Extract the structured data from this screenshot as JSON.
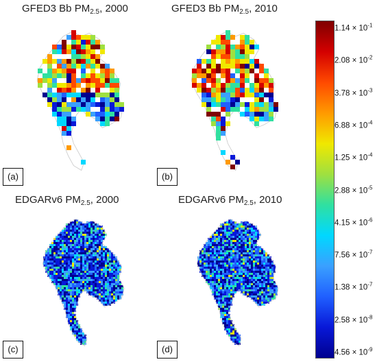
{
  "panels": [
    {
      "id": "a",
      "title_prefix": "GFED3 Bb PM",
      "title_sub": "2.5",
      "title_suffix": ", 2000",
      "tag": "(a)",
      "dataset": "GFED3"
    },
    {
      "id": "b",
      "title_prefix": "GFED3 Bb PM",
      "title_sub": "2.5",
      "title_suffix": ", 2010",
      "tag": "(b)",
      "dataset": "GFED3"
    },
    {
      "id": "c",
      "title_prefix": "EDGARv6 PM",
      "title_sub": "2.5",
      "title_suffix": ", 2000",
      "tag": "(c)",
      "dataset": "EDGARv6"
    },
    {
      "id": "d",
      "title_prefix": "EDGARv6 PM",
      "title_sub": "2.5",
      "title_suffix": ", 2010",
      "tag": "(d)",
      "dataset": "EDGARv6"
    }
  ],
  "colorbar": {
    "labels": [
      {
        "mant": "1.14",
        "exp": "-1"
      },
      {
        "mant": "2.08",
        "exp": "-2"
      },
      {
        "mant": "3.78",
        "exp": "-3"
      },
      {
        "mant": "6.88",
        "exp": "-4"
      },
      {
        "mant": "1.25",
        "exp": "-4"
      },
      {
        "mant": "2.88",
        "exp": "-5"
      },
      {
        "mant": "4.15",
        "exp": "-6"
      },
      {
        "mant": "7.56",
        "exp": "-7"
      },
      {
        "mant": "1.38",
        "exp": "-7"
      },
      {
        "mant": "2.58",
        "exp": "-8"
      },
      {
        "mant": "4.56",
        "exp": "-9"
      }
    ],
    "times": "×",
    "colors_top_to_bottom": [
      "#7f0000",
      "#d40000",
      "#ff4a00",
      "#ff9a00",
      "#f0e800",
      "#9fe040",
      "#30e0a0",
      "#00d8ff",
      "#3aa0ff",
      "#2060ff",
      "#0818d8",
      "#00008f"
    ]
  }
}
